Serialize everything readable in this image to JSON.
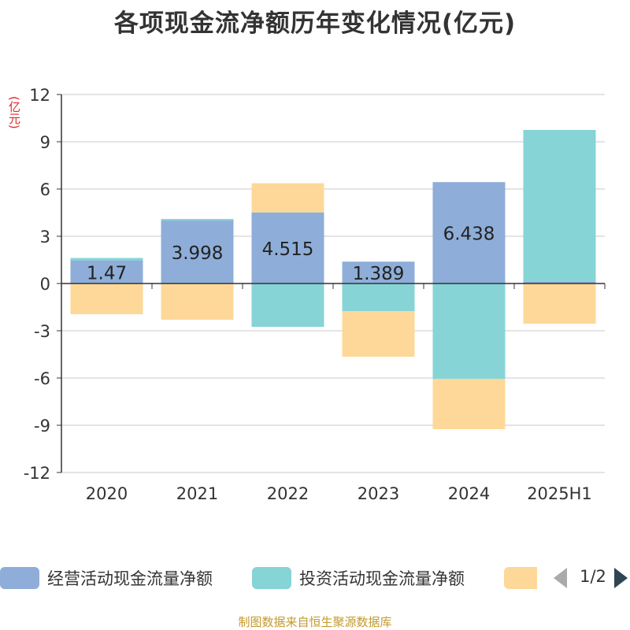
{
  "chart_data": {
    "type": "bar",
    "stacked": true,
    "title": "各项现金流净额历年变化情况(亿元)",
    "ylabel": "(亿元)",
    "categories": [
      "2020",
      "2021",
      "2022",
      "2023",
      "2024",
      "2025H1"
    ],
    "ylim": [
      -12,
      12
    ],
    "yticks": [
      12,
      9,
      6,
      3,
      0,
      -3,
      -6,
      -9,
      -12
    ],
    "grid": true,
    "legend_position": "bottom",
    "series": [
      {
        "name": "经营活动现金流量净额",
        "color": "#8eaed9",
        "values": [
          1.47,
          3.998,
          4.515,
          1.389,
          6.438,
          0.1
        ],
        "labels": [
          "1.47",
          "3.998",
          "4.515",
          "1.389",
          "6.438",
          ""
        ]
      },
      {
        "name": "投资活动现金流量净额",
        "color": "#86d4d6",
        "values": [
          0.15,
          0.1,
          -2.75,
          -1.75,
          -6.05,
          9.65
        ]
      },
      {
        "name": "",
        "color": "#fed898",
        "values": [
          -1.95,
          -2.3,
          1.85,
          -2.9,
          -3.2,
          -2.55
        ]
      }
    ]
  },
  "legend": {
    "items": [
      {
        "label": "经营活动现金流量净额",
        "color": "#8eaed9"
      },
      {
        "label": "投资活动现金流量净额",
        "color": "#86d4d6"
      },
      {
        "label": "",
        "color": "#fed898"
      }
    ],
    "page": "1/2"
  },
  "footer": {
    "source": "制图数据来自恒生聚源数据库"
  }
}
